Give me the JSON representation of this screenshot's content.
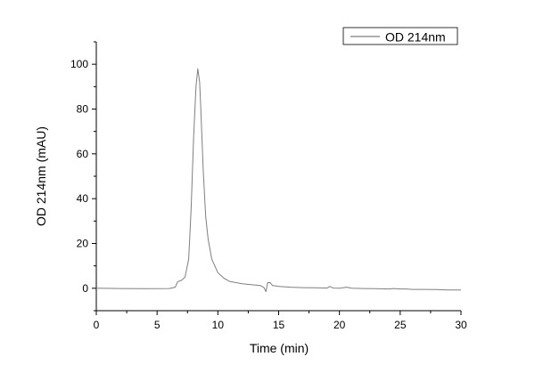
{
  "chart_data": {
    "type": "line",
    "title": "",
    "xlabel": "Time (min)",
    "ylabel": "OD 214nm (mAU)",
    "xlim": [
      0,
      30
    ],
    "ylim": [
      -10,
      110
    ],
    "xticks": [
      0,
      5,
      10,
      15,
      20,
      25,
      30
    ],
    "yticks": [
      0,
      20,
      40,
      60,
      80,
      100
    ],
    "grid": false,
    "legend_position": "top-right",
    "series": [
      {
        "name": "OD 214nm",
        "color": "#7f7f7f",
        "x": [
          0,
          2,
          4,
          6,
          6.5,
          6.7,
          7,
          7.3,
          7.6,
          7.8,
          8.0,
          8.2,
          8.35,
          8.5,
          8.6,
          8.8,
          9.0,
          9.2,
          9.5,
          10,
          10.5,
          11,
          12,
          13,
          13.5,
          13.8,
          13.95,
          14.1,
          14.3,
          14.5,
          14.8,
          15,
          16,
          17,
          18,
          19,
          19.2,
          19.5,
          20,
          20.6,
          21,
          22,
          23,
          24,
          24.5,
          25,
          25.5,
          26,
          27,
          28,
          29,
          30
        ],
        "y": [
          0,
          -0.1,
          -0.2,
          -0.1,
          0.5,
          3,
          3.5,
          5,
          13,
          35,
          67,
          90,
          98,
          92,
          80,
          52,
          32,
          22,
          13,
          7,
          4.5,
          3,
          2,
          1.5,
          1.2,
          0.3,
          -1.5,
          2.5,
          2.5,
          1.2,
          1,
          0.8,
          0.5,
          0.3,
          0.2,
          0.1,
          0.8,
          0.1,
          0,
          0.5,
          0,
          -0.1,
          -0.2,
          -0.3,
          -0.1,
          -0.3,
          -0.3,
          -0.5,
          -0.5,
          -0.6,
          -0.8,
          -0.8
        ]
      }
    ]
  }
}
